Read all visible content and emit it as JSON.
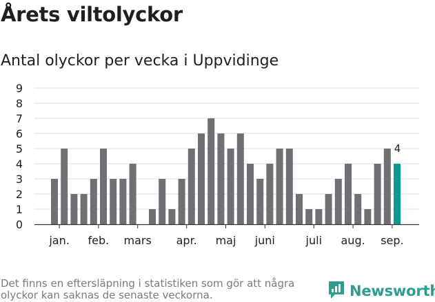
{
  "title": "Årets viltolyckor",
  "subtitle": "Antal olyckor per vecka i Uppvidinge",
  "footnote": "Det finns en eftersläpning i statistiken som gör att några olyckor kan saknas de senaste veckorna.",
  "brand": {
    "name": "Newsworthy",
    "icon": "newsworthy-logo-icon",
    "color": "#2e9d8d"
  },
  "colors": {
    "bar": "#707074",
    "highlight": "#0a9a8e",
    "grid": "#dcdcdc",
    "axis": "#333333"
  },
  "chart_data": {
    "type": "bar",
    "title": "",
    "xlabel": "",
    "ylabel": "",
    "ylim": [
      0,
      9
    ],
    "yticks": [
      0,
      1,
      2,
      3,
      4,
      5,
      6,
      7,
      8,
      9
    ],
    "grid": true,
    "values": [
      3,
      5,
      2,
      2,
      3,
      5,
      3,
      3,
      4,
      0,
      1,
      3,
      1,
      3,
      5,
      6,
      7,
      6,
      5,
      6,
      4,
      3,
      4,
      5,
      5,
      2,
      1,
      1,
      2,
      3,
      4,
      2,
      1,
      4,
      5,
      4
    ],
    "month_labels": [
      {
        "label": "jan.",
        "at": 1.5
      },
      {
        "label": "feb.",
        "at": 5.5
      },
      {
        "label": "mars",
        "at": 9.5
      },
      {
        "label": "apr.",
        "at": 14.5
      },
      {
        "label": "maj",
        "at": 18.5
      },
      {
        "label": "juni",
        "at": 22.5
      },
      {
        "label": "juli",
        "at": 27.5
      },
      {
        "label": "aug.",
        "at": 31.5
      },
      {
        "label": "sep.",
        "at": 35.5
      }
    ],
    "highlight_last": true,
    "last_value_label": "4"
  }
}
